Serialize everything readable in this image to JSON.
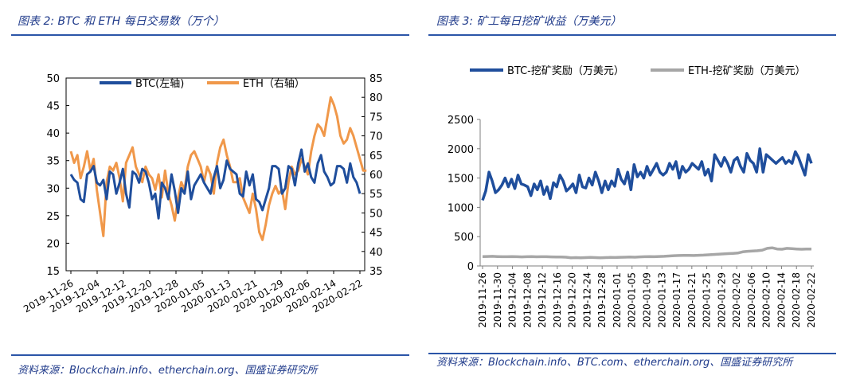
{
  "left": {
    "title": "图表 2: BTC 和 ETH 每日交易数（万个）",
    "source": "资料来源：Blockchain.info、etherchain.org、国盛证券研究所"
  },
  "right": {
    "title": "图表 3: 矿工每日挖矿收益（万美元）",
    "source": "资料来源：Blockchain.info、BTC.com、etherchain.org、国盛证券研究所"
  },
  "chart_data": [
    {
      "type": "line",
      "title": "",
      "y_left_lim": [
        15,
        50
      ],
      "y_left_ticks": [
        "15",
        "20",
        "25",
        "30",
        "35",
        "40",
        "45",
        "50"
      ],
      "y_right_lim": [
        35,
        85
      ],
      "y_right_ticks": [
        "35",
        "40",
        "45",
        "50",
        "55",
        "60",
        "65",
        "70",
        "75",
        "80",
        "85"
      ],
      "x_tick_labels": [
        "2019-11-26",
        "2019-12-04",
        "2019-12-12",
        "2019-12-20",
        "2019-12-28",
        "2020-01-05",
        "2020-01-13",
        "2020-01-21",
        "2020-01-29",
        "2020-02-06",
        "2020-02-14",
        "2020-02-22"
      ],
      "legend_position": "top",
      "series": [
        {
          "name": "BTC(左轴)",
          "axis": "left",
          "color": "#1f4e9c",
          "values": [
            32.5,
            31.5,
            31,
            28,
            27.5,
            32.5,
            33,
            34,
            31,
            30.5,
            31.5,
            28,
            33,
            32.5,
            29,
            31,
            33.5,
            29,
            26.5,
            33,
            32.5,
            31,
            33.5,
            33,
            31,
            28,
            29,
            24.5,
            31,
            30,
            28,
            32.5,
            29.5,
            25.5,
            30,
            29,
            33,
            28,
            30.5,
            31.5,
            32.5,
            31,
            30,
            29,
            32,
            34,
            30,
            31.5,
            35,
            33.5,
            33,
            32.5,
            29,
            28.5,
            33,
            30.5,
            32.5,
            28,
            27.5,
            26,
            28,
            30,
            34,
            34,
            33.5,
            29,
            30,
            34,
            33.5,
            30.5,
            34.5,
            37,
            33,
            34.5,
            32,
            31,
            34.5,
            36,
            33,
            32,
            30.5,
            31,
            34,
            34,
            33.5,
            31,
            34.5,
            32,
            31,
            29
          ]
        },
        {
          "name": "ETH（右轴）",
          "axis": "right",
          "color": "#f0984a",
          "values": [
            66,
            63,
            65,
            59,
            62,
            66,
            61,
            64,
            56,
            50,
            44,
            58,
            62,
            61,
            63,
            59,
            53,
            63,
            65,
            67,
            62,
            60,
            58,
            62,
            60,
            59,
            56,
            60,
            54,
            61,
            55,
            52,
            48,
            54,
            58,
            56,
            62,
            65,
            66,
            64,
            62,
            58,
            62,
            60,
            55,
            63,
            67,
            69,
            65,
            62,
            58,
            58,
            59,
            54,
            52,
            50,
            55,
            51,
            45,
            43,
            47,
            52,
            55,
            57,
            55,
            56,
            51,
            58,
            62,
            60,
            61,
            64,
            62,
            60,
            66,
            70,
            73,
            72,
            70,
            75,
            80,
            78,
            75,
            70,
            68,
            69,
            72,
            70,
            67,
            64,
            61,
            61
          ]
        }
      ]
    },
    {
      "type": "line",
      "title": "",
      "ylim": [
        0,
        2500
      ],
      "y_ticks": [
        "0",
        "500",
        "1000",
        "1500",
        "2000",
        "2500"
      ],
      "x_tick_labels": [
        "2019-11-26",
        "2019-11-30",
        "2019-12-04",
        "2019-12-08",
        "2019-12-12",
        "2019-12-16",
        "2019-12-20",
        "2019-12-24",
        "2019-12-28",
        "2020-01-01",
        "2020-01-05",
        "2020-01-09",
        "2020-01-13",
        "2020-01-17",
        "2020-01-21",
        "2020-01-25",
        "2020-01-29",
        "2020-02-02",
        "2020-02-06",
        "2020-02-10",
        "2020-02-14",
        "2020-02-18",
        "2020-02-22"
      ],
      "legend_position": "top",
      "series": [
        {
          "name": "BTC-挖矿奖励（万美元）",
          "color": "#1f4e9c",
          "values": [
            1120,
            1280,
            1600,
            1450,
            1250,
            1300,
            1380,
            1500,
            1350,
            1480,
            1320,
            1550,
            1400,
            1380,
            1350,
            1200,
            1400,
            1300,
            1450,
            1220,
            1350,
            1150,
            1420,
            1350,
            1550,
            1450,
            1280,
            1330,
            1400,
            1250,
            1550,
            1350,
            1330,
            1500,
            1380,
            1600,
            1450,
            1250,
            1450,
            1300,
            1450,
            1360,
            1650,
            1480,
            1400,
            1600,
            1300,
            1730,
            1520,
            1600,
            1500,
            1700,
            1550,
            1650,
            1750,
            1600,
            1550,
            1600,
            1750,
            1650,
            1780,
            1500,
            1700,
            1600,
            1650,
            1750,
            1700,
            1650,
            1780,
            1550,
            1650,
            1450,
            1900,
            1800,
            1700,
            1850,
            1750,
            1600,
            1800,
            1850,
            1700,
            1600,
            1920,
            1800,
            1750,
            1600,
            2000,
            1600,
            1900,
            1850,
            1800,
            1750,
            1800,
            1850,
            1750,
            1800,
            1750,
            1950,
            1850,
            1700,
            1550,
            1900,
            1750
          ]
        },
        {
          "name": "ETH-挖矿奖励（万美元）",
          "color": "#a6a6a6",
          "values": [
            160,
            162,
            165,
            160,
            158,
            157,
            160,
            158,
            155,
            157,
            160,
            156,
            158,
            157,
            155,
            153,
            152,
            150,
            140,
            142,
            140,
            143,
            145,
            142,
            140,
            143,
            145,
            144,
            148,
            150,
            152,
            150,
            155,
            158,
            160,
            158,
            162,
            165,
            170,
            175,
            178,
            180,
            180,
            178,
            182,
            185,
            190,
            195,
            200,
            205,
            210,
            215,
            220,
            240,
            250,
            255,
            260,
            270,
            300,
            310,
            290,
            285,
            300,
            295,
            290,
            285,
            290,
            288
          ]
        }
      ]
    }
  ]
}
